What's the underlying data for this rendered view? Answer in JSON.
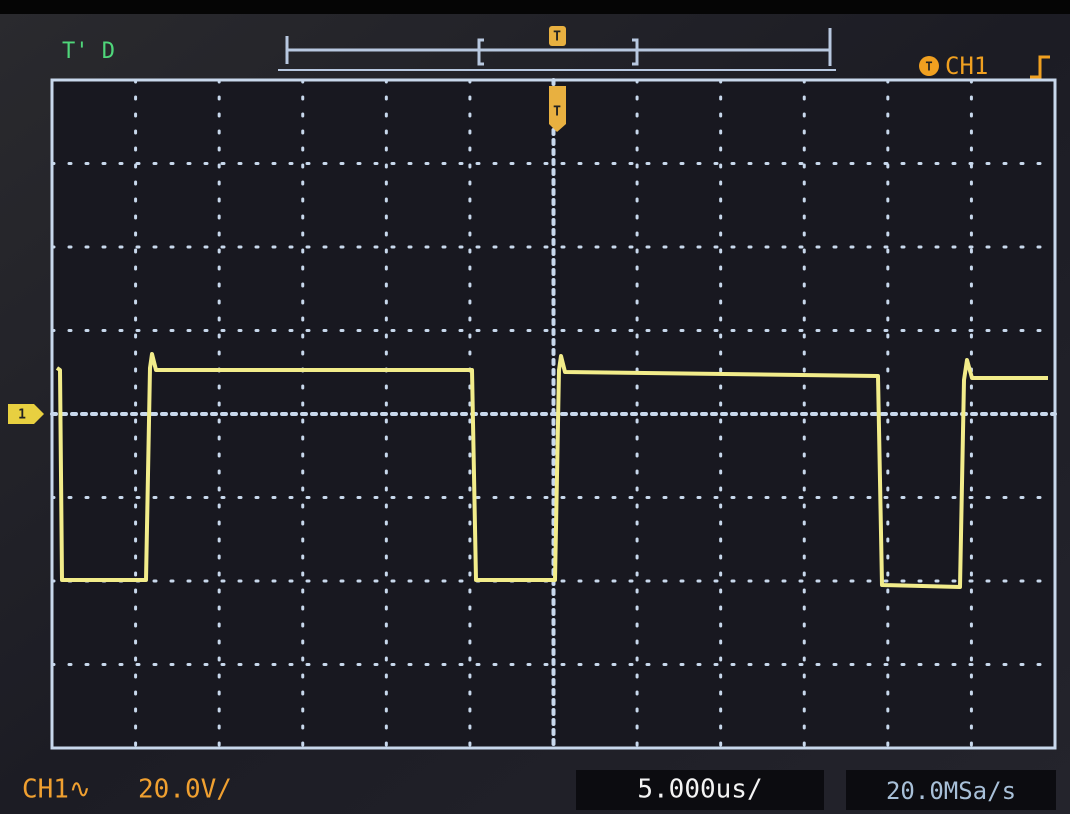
{
  "header": {
    "status": "T' D",
    "trigger_marker": "T",
    "trigger_source": "CH1"
  },
  "screen": {
    "channel_marker": "1",
    "trigger_marker": "T"
  },
  "footer": {
    "channel": "CH1∿",
    "volts_per_div": "20.0V/",
    "time_per_div": "5.000us/",
    "sample_rate": "20.0MSa/s"
  }
}
